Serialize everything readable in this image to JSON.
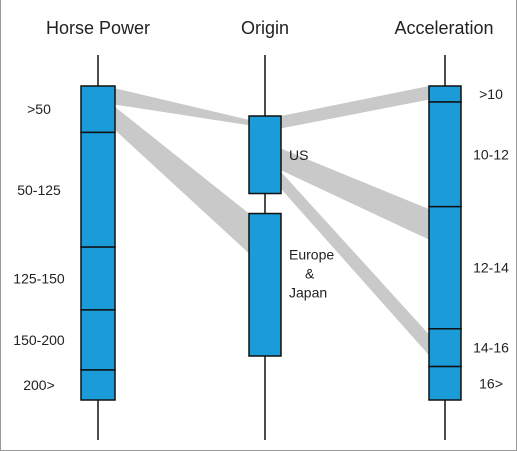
{
  "chart_data": {
    "type": "parallel-sets",
    "axes": [
      {
        "title": "Horse Power",
        "categories": [
          {
            "label": ">50",
            "share": 0.17
          },
          {
            "label": "50-125",
            "share": 0.42
          },
          {
            "label": "125-150",
            "share": 0.23
          },
          {
            "label": "150-200",
            "share": 0.22
          },
          {
            "label": "200>",
            "share": 0.11
          }
        ]
      },
      {
        "title": "Origin",
        "categories": [
          {
            "label": "US",
            "lines": [
              "US"
            ],
            "share": 0.37
          },
          {
            "label": "Europe & Japan",
            "lines": [
              "Europe",
              "&",
              "Japan"
            ],
            "share": 0.68
          }
        ]
      },
      {
        "title": "Acceleration",
        "categories": [
          {
            "label": ">10",
            "share": 0.055
          },
          {
            "label": "10-12",
            "share": 0.36
          },
          {
            "label": "12-14",
            "share": 0.42
          },
          {
            "label": "14-16",
            "share": 0.13
          },
          {
            "label": "16>",
            "share": 0.115
          }
        ]
      }
    ],
    "ribbons": [
      {
        "from_axis": 0,
        "from": ">50",
        "to_axis": 1,
        "to": "US"
      },
      {
        "from_axis": 0,
        "from": ">50",
        "to_axis": 1,
        "to": "Europe & Japan"
      },
      {
        "from_axis": 1,
        "from": "US",
        "to_axis": 2,
        "to": ">10"
      },
      {
        "from_axis": 1,
        "from": "US",
        "to_axis": 2,
        "to": "12-14"
      },
      {
        "from_axis": 1,
        "from": "US",
        "to_axis": 2,
        "to": "14-16"
      }
    ],
    "colors": {
      "bar": "#1b9bd7",
      "ribbon": "#c9c9c9",
      "line": "#111111"
    }
  }
}
